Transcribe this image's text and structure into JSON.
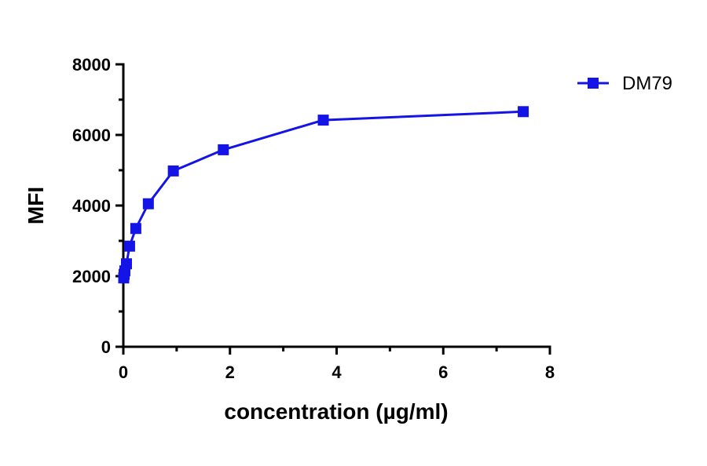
{
  "chart_data": {
    "type": "line",
    "xlabel": "concentration (µg/ml)",
    "ylabel": "MFI",
    "xlim": [
      0,
      8
    ],
    "ylim": [
      0,
      8000
    ],
    "xticks": [
      "0",
      "2",
      "4",
      "6",
      "8"
    ],
    "yticks": [
      "0",
      "2000",
      "4000",
      "6000",
      "8000"
    ],
    "grid": false,
    "legend_position": "top-right",
    "series": [
      {
        "name": "DM79",
        "color": "#1414e6",
        "marker": "square",
        "x": [
          0.0073,
          0.0146,
          0.0293,
          0.0586,
          0.117,
          0.234,
          0.469,
          0.9375,
          1.875,
          3.75,
          7.5
        ],
        "y": [
          1950,
          2050,
          2150,
          2350,
          2850,
          3350,
          4050,
          4980,
          5580,
          6420,
          6660
        ]
      }
    ]
  }
}
